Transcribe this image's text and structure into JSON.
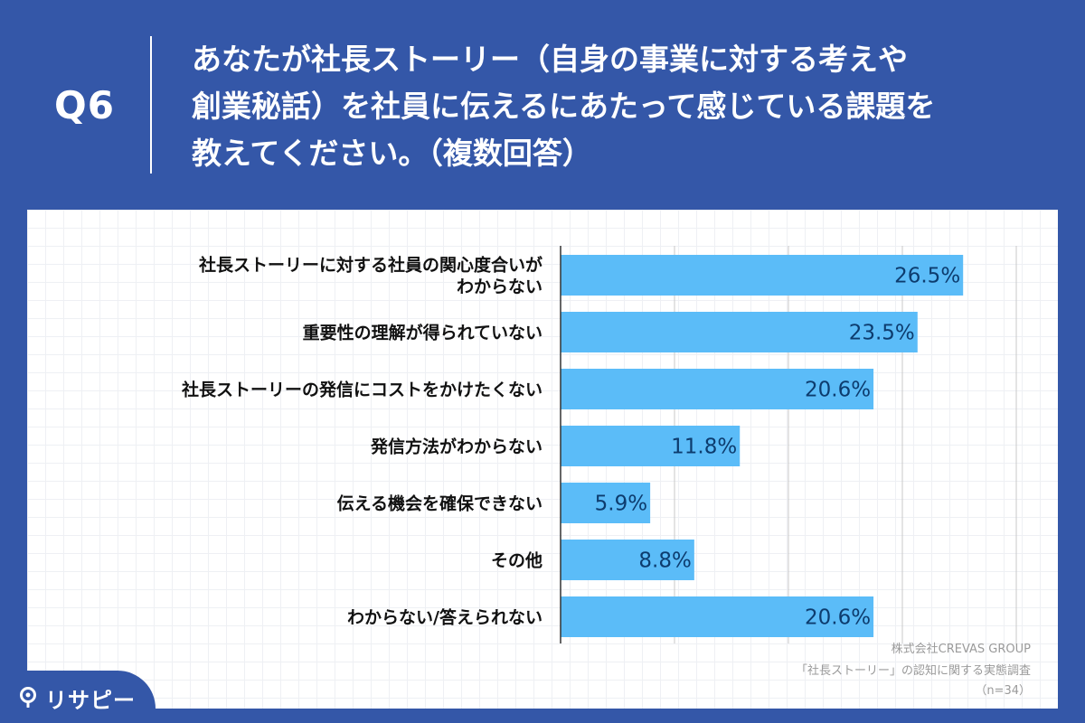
{
  "header": {
    "question_label": "Q6",
    "question_lines": [
      "あなたが社長ストーリー（自身の事業に対する考えや",
      "創業秘話）を社員に伝えるにあたって感じている課題を",
      "教えてください。（複数回答）"
    ]
  },
  "source": {
    "company": "株式会社CREVAS GROUP",
    "survey": "「社長ストーリー」の認知に関する実態調査",
    "sample": "（n=34）"
  },
  "brand": {
    "name": "リサピー"
  },
  "colors": {
    "background": "#3457a8",
    "bar": "#5bbcf8",
    "bar_label": "#0d3c6e",
    "category_text": "#111111",
    "axis": "#333333",
    "gridline": "#c8c8c8",
    "source_text": "#9a9a9a"
  },
  "chart_data": {
    "type": "bar",
    "orientation": "horizontal",
    "categories": [
      [
        "社長ストーリーに対する社員の関心度合いが",
        "わからない"
      ],
      [
        "重要性の理解が得られていない"
      ],
      [
        "社長ストーリーの発信にコストをかけたくない"
      ],
      [
        "発信方法がわからない"
      ],
      [
        "伝える機会を確保できない"
      ],
      [
        "その他"
      ],
      [
        "わからない/答えられない"
      ]
    ],
    "values": [
      26.5,
      23.5,
      20.6,
      11.8,
      5.9,
      8.8,
      20.6
    ],
    "value_labels": [
      "26.5%",
      "23.5%",
      "20.6%",
      "11.8%",
      "5.9%",
      "8.8%",
      "20.6%"
    ],
    "xlim": [
      0,
      30
    ],
    "grid": true,
    "unit": "%"
  }
}
